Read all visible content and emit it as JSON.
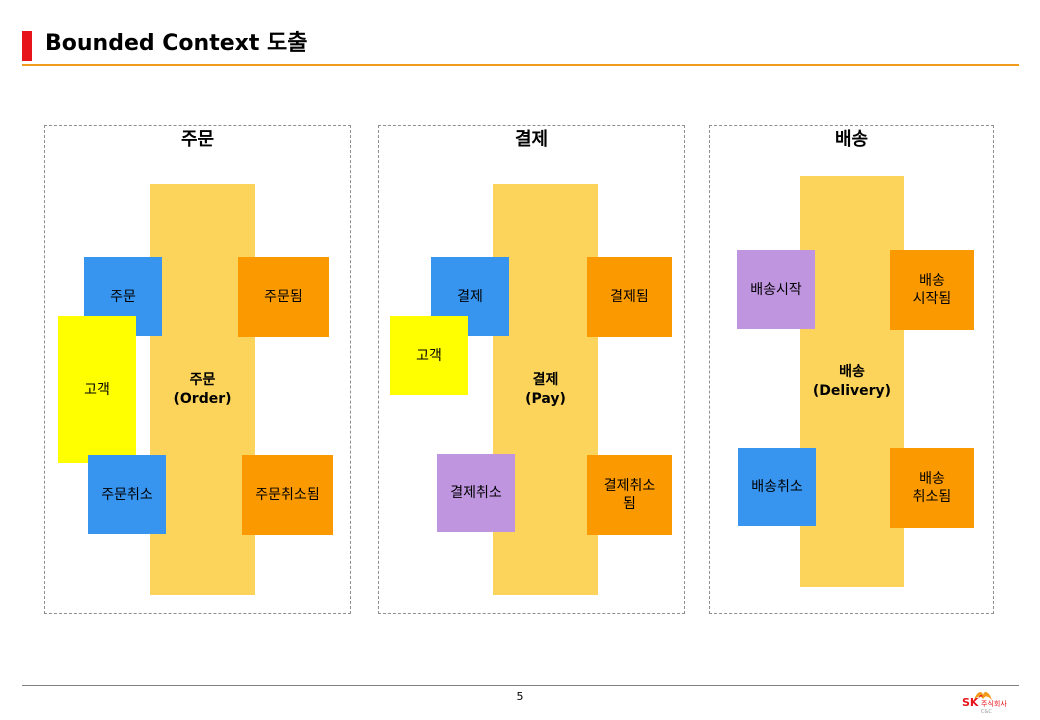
{
  "header": {
    "title": "Bounded Context 도출"
  },
  "contexts": [
    {
      "name": "주문",
      "aggregate": "주문\n(Order)",
      "commands": [
        "주문",
        "주문취소"
      ],
      "actor": "고객",
      "events": [
        "주문됨",
        "주문취소됨"
      ]
    },
    {
      "name": "결제",
      "aggregate": "결제\n(Pay)",
      "commands": [
        "결제"
      ],
      "actor": "고객",
      "policy": "결제취소",
      "events": [
        "결제됨",
        "결제취소\n됨"
      ]
    },
    {
      "name": "배송",
      "aggregate": "배송\n(Delivery)",
      "policy": "배송시작",
      "commands": [
        "배송취소"
      ],
      "events": [
        "배송\n시작됨",
        "배송\n취소됨"
      ]
    }
  ],
  "footer": {
    "page_number": "5",
    "logo_text": "SK",
    "logo_company": "주식회사",
    "logo_sub": "C&C"
  },
  "colors": {
    "command": "#3795f0",
    "event": "#fb9a00",
    "actor": "#ffff00",
    "policy": "#bf95df",
    "aggregate": "#fcd45c",
    "title_marker": "#e8141c",
    "title_rule": "#f29a1a"
  }
}
